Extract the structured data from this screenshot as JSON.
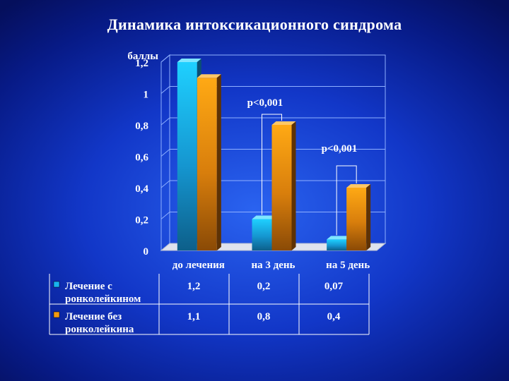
{
  "title": "Динамика интоксикационного синдрома",
  "colors": {
    "series1": "#18b4f0",
    "series2": "#f39a12",
    "background": "#1237c8",
    "text": "#ffffff"
  },
  "chart_data": {
    "type": "bar",
    "ylabel": "баллы",
    "ylim": [
      0,
      1.2
    ],
    "yticks": [
      "0",
      "0,2",
      "0,4",
      "0,6",
      "0,8",
      "1",
      "1,2"
    ],
    "categories": [
      "до лечения",
      "на 3 день",
      "на 5 день"
    ],
    "series": [
      {
        "name": "Лечение с ронколейкином",
        "values": [
          1.2,
          0.2,
          0.07
        ],
        "labels": [
          "1,2",
          "0,2",
          "0,07"
        ]
      },
      {
        "name": "Лечение без ронколейкина",
        "values": [
          1.1,
          0.8,
          0.4
        ],
        "labels": [
          "1,1",
          "0,8",
          "0,4"
        ]
      }
    ],
    "annotations": [
      "p<0,001",
      "p<0,001"
    ],
    "legend": "bottom-table",
    "grid": true
  }
}
